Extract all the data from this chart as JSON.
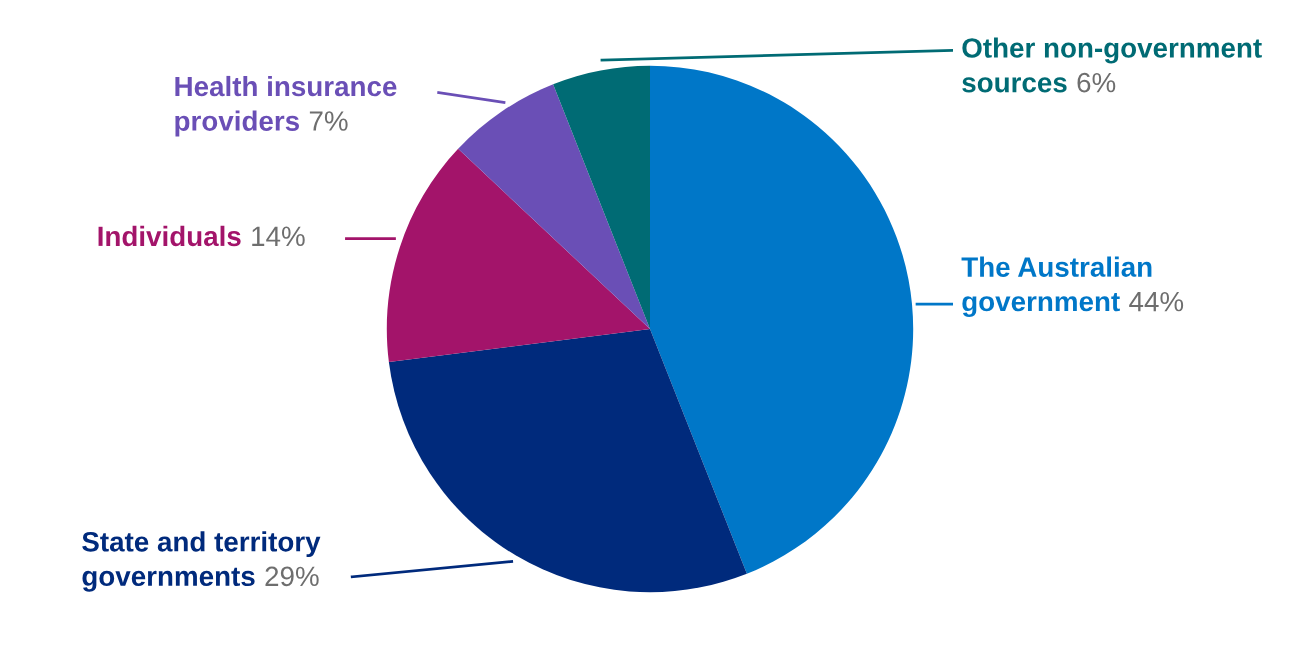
{
  "chart_data": {
    "type": "pie",
    "categories": [
      "The Australian\ngovernment",
      "State and territory\ngovernments",
      "Individuals",
      "Health insurance\nproviders",
      "Other non-government\nsources"
    ],
    "values": [
      44,
      29,
      14,
      7,
      6
    ],
    "value_labels": [
      "44%",
      "29%",
      "14%",
      "7%",
      "6%"
    ],
    "colors": [
      "#0077c8",
      "#002a7c",
      "#a3146a",
      "#6a4fb6",
      "#006b74"
    ]
  }
}
